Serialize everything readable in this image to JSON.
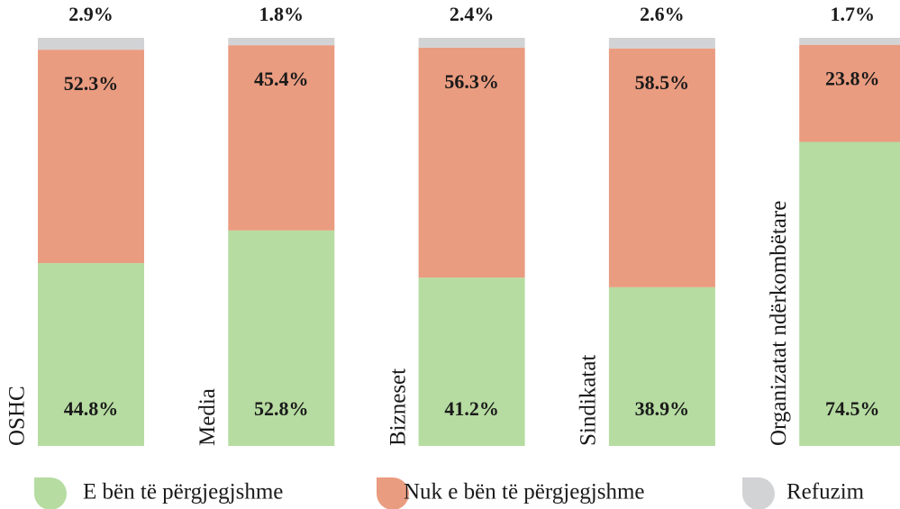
{
  "chart_data": {
    "type": "stacked-bar",
    "categories": [
      "OSHC",
      "Media",
      "Bizneset",
      "Sindikatat",
      "Organizatat ndërkombëtare"
    ],
    "series": [
      {
        "name": "E bën të përgjegjshme",
        "color": "#b6dca1",
        "values": [
          44.8,
          52.8,
          41.2,
          38.9,
          74.5
        ],
        "value_labels": [
          "44.8%",
          "52.8%",
          "41.2%",
          "38.9%",
          "74.5%"
        ]
      },
      {
        "name": "Nuk e bën të përgjegjshme",
        "color": "#ea9c80",
        "values": [
          52.3,
          45.4,
          56.3,
          58.5,
          23.8
        ],
        "value_labels": [
          "52.3%",
          "45.4%",
          "56.3%",
          "58.5%",
          "23.8%"
        ]
      },
      {
        "name": "Refuzim",
        "color": "#d2d3d5",
        "values": [
          2.9,
          1.8,
          2.4,
          2.6,
          1.7
        ],
        "value_labels": [
          "2.9%",
          "1.8%",
          "2.4%",
          "2.6%",
          "1.7%"
        ]
      }
    ]
  }
}
